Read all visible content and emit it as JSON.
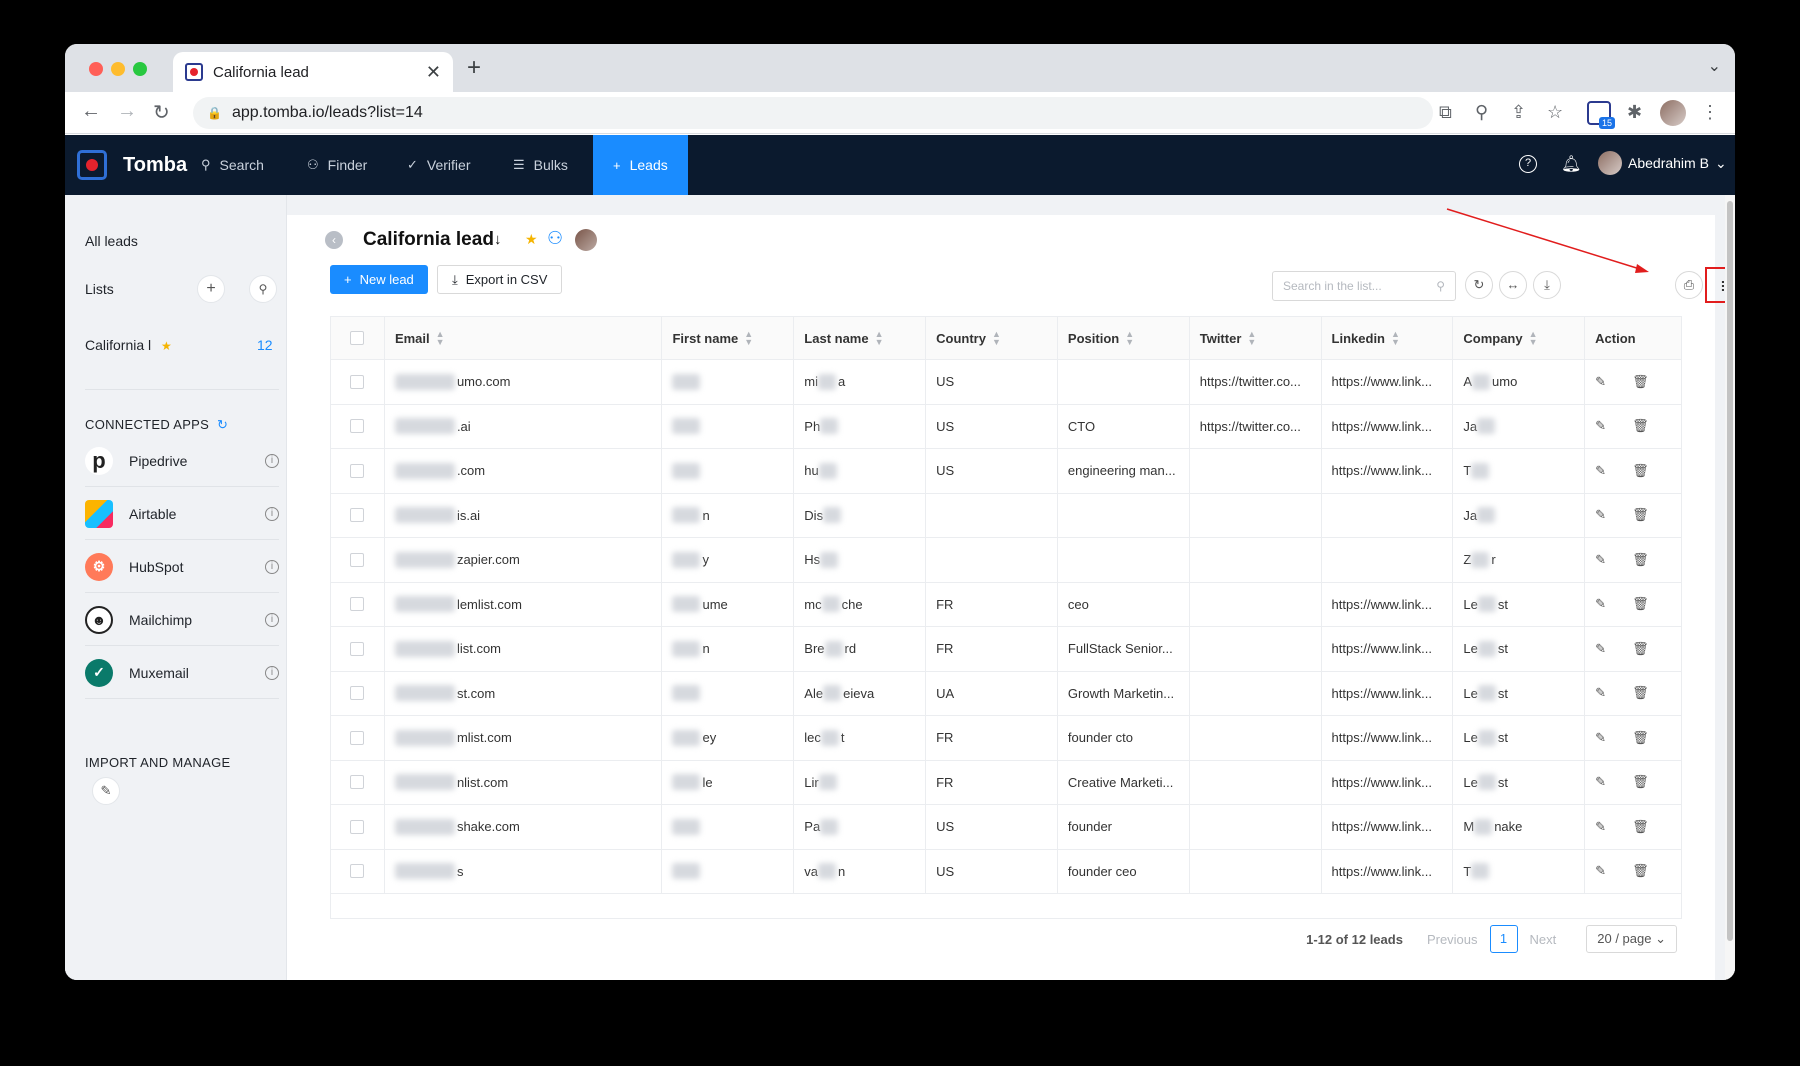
{
  "browser": {
    "tab_title": "California lead",
    "url": "app.tomba.io/leads?list=14",
    "extension_badge": "15"
  },
  "appnav": {
    "brand": "Tomba",
    "items": [
      {
        "label": "Search",
        "icon": "search-icon"
      },
      {
        "label": "Finder",
        "icon": "user-icon"
      },
      {
        "label": "Verifier",
        "icon": "check-icon"
      },
      {
        "label": "Bulks",
        "icon": "list-icon"
      },
      {
        "label": "Leads",
        "icon": "plus-icon"
      }
    ],
    "active": "Leads",
    "user_name": "Abedrahim B"
  },
  "sidebar": {
    "all_leads": "All leads",
    "lists_label": "Lists",
    "list_item": "California l",
    "list_count": "12",
    "connected_apps_title": "CONNECTED APPS",
    "apps": [
      {
        "name": "Pipedrive",
        "color": "#ffffff"
      },
      {
        "name": "Airtable",
        "color": "#fcb400"
      },
      {
        "name": "HubSpot",
        "color": "#ff7a59"
      },
      {
        "name": "Mailchimp",
        "color": "#ffe01b"
      },
      {
        "name": "Muxemail",
        "color": "#0a7a6a"
      }
    ],
    "import_title": "IMPORT AND MANAGE"
  },
  "main": {
    "title": "California lead",
    "new_lead_label": "New lead",
    "export_label": "Export in CSV",
    "search_placeholder": "Search in the list..."
  },
  "table": {
    "columns": [
      "Email",
      "First name",
      "Last name",
      "Country",
      "Position",
      "Twitter",
      "Linkedin",
      "Company",
      "Action"
    ],
    "rows": [
      {
        "email": "umo.com",
        "first": "",
        "last_pre": "mi",
        "last_suf": "a",
        "country": "US",
        "position": "",
        "twitter": "https://twitter.co...",
        "linkedin": "https://www.link...",
        "co_pre": "A",
        "co_suf": "umo"
      },
      {
        "email": ".ai",
        "first": "",
        "last_pre": "Ph",
        "last_suf": "",
        "country": "US",
        "position": "CTO",
        "twitter": "https://twitter.co...",
        "linkedin": "https://www.link...",
        "co_pre": "Ja",
        "co_suf": ""
      },
      {
        "email": ".com",
        "first": "",
        "last_pre": "hu",
        "last_suf": "",
        "country": "US",
        "position": "engineering man...",
        "twitter": "",
        "linkedin": "https://www.link...",
        "co_pre": "T",
        "co_suf": ""
      },
      {
        "email": "is.ai",
        "first": "n",
        "last_pre": "Dis",
        "last_suf": "",
        "country": "",
        "position": "",
        "twitter": "",
        "linkedin": "",
        "co_pre": "Ja",
        "co_suf": ""
      },
      {
        "email": "zapier.com",
        "first": "y",
        "last_pre": "Hs",
        "last_suf": "",
        "country": "",
        "position": "",
        "twitter": "",
        "linkedin": "",
        "co_pre": "Z",
        "co_suf": "r"
      },
      {
        "email": "lemlist.com",
        "first": "ume",
        "last_pre": "mc",
        "last_suf": "che",
        "country": "FR",
        "position": "ceo",
        "twitter": "",
        "linkedin": "https://www.link...",
        "co_pre": "Le",
        "co_suf": "st"
      },
      {
        "email": "list.com",
        "first": "n",
        "last_pre": "Bre",
        "last_suf": "rd",
        "country": "FR",
        "position": "FullStack Senior...",
        "twitter": "",
        "linkedin": "https://www.link...",
        "co_pre": "Le",
        "co_suf": "st"
      },
      {
        "email": "st.com",
        "first": "",
        "last_pre": "Ale",
        "last_suf": "eieva",
        "country": "UA",
        "position": "Growth Marketin...",
        "twitter": "",
        "linkedin": "https://www.link...",
        "co_pre": "Le",
        "co_suf": "st"
      },
      {
        "email": "mlist.com",
        "first": "ey",
        "last_pre": "lec",
        "last_suf": "t",
        "country": "FR",
        "position": "founder cto",
        "twitter": "",
        "linkedin": "https://www.link...",
        "co_pre": "Le",
        "co_suf": "st"
      },
      {
        "email": "nlist.com",
        "first": "le",
        "last_pre": "Lir",
        "last_suf": "",
        "country": "FR",
        "position": "Creative Marketi...",
        "twitter": "",
        "linkedin": "https://www.link...",
        "co_pre": "Le",
        "co_suf": "st"
      },
      {
        "email": "shake.com",
        "first": "",
        "last_pre": "Pa",
        "last_suf": "",
        "country": "US",
        "position": "founder",
        "twitter": "",
        "linkedin": "https://www.link...",
        "co_pre": "M",
        "co_suf": "nake"
      },
      {
        "email": "s",
        "first": "",
        "last_pre": "va",
        "last_suf": "n",
        "country": "US",
        "position": "founder ceo",
        "twitter": "",
        "linkedin": "https://www.link...",
        "co_pre": "T",
        "co_suf": ""
      }
    ]
  },
  "pagination": {
    "summary": "1-12 of 12 leads",
    "previous": "Previous",
    "current_page": "1",
    "next": "Next",
    "page_size": "20 / page"
  },
  "colors": {
    "nav_bg": "#0b1a2e",
    "accent": "#1a8cff",
    "highlight": "#e11d1d"
  }
}
